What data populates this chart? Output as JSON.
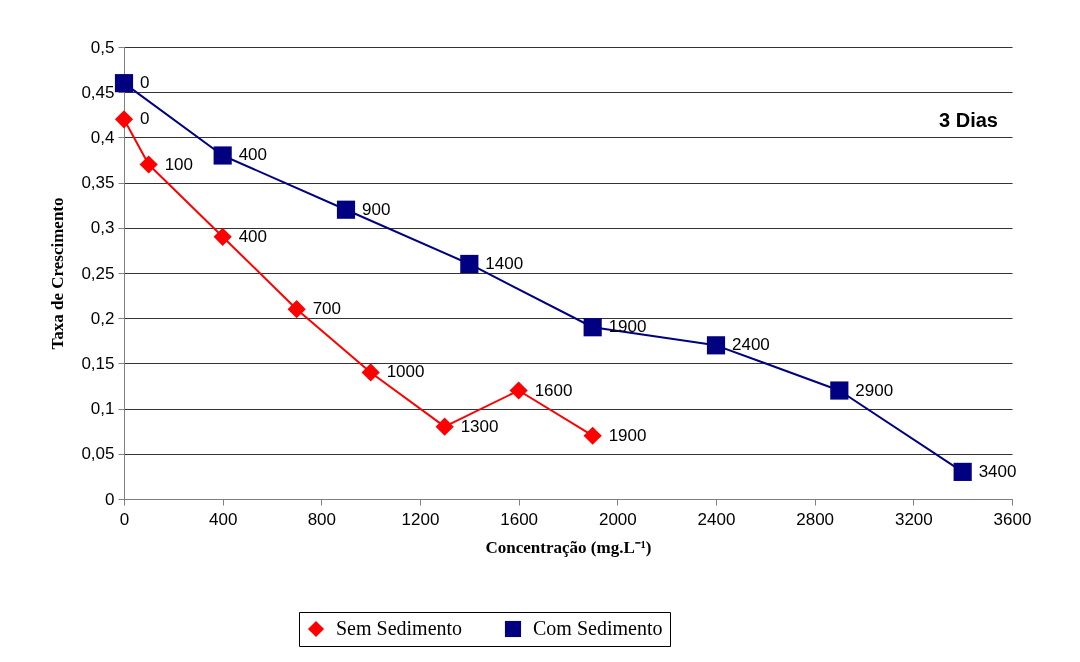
{
  "chart_data": {
    "type": "line",
    "xlabel": "Concentração (mg.L⁻¹)",
    "ylabel": "Taxa de Crescimento",
    "annotations": [
      "3 Dias",
      {
        "text": "0",
        "x": 0,
        "y": 0.42
      },
      {
        "text": "100",
        "x": 100,
        "y": 0.37
      },
      {
        "text": "400",
        "x": 400,
        "y": 0.29
      },
      {
        "text": "700",
        "x": 700,
        "y": 0.21
      },
      {
        "text": "1000",
        "x": 1000,
        "y": 0.14
      },
      {
        "text": "1300",
        "x": 1300,
        "y": 0.08
      },
      {
        "text": "1600",
        "x": 1600,
        "y": 0.12
      },
      {
        "text": "1900",
        "x": 1900,
        "y": 0.07
      },
      {
        "text": "0",
        "x": 0,
        "y": 0.46
      },
      {
        "text": "400",
        "x": 400,
        "y": 0.38
      },
      {
        "text": "900",
        "x": 900,
        "y": 0.32
      },
      {
        "text": "1400",
        "x": 1400,
        "y": 0.26
      },
      {
        "text": "1900",
        "x": 1900,
        "y": 0.19
      },
      {
        "text": "2400",
        "x": 2400,
        "y": 0.17
      },
      {
        "text": "2900",
        "x": 2900,
        "y": 0.12
      },
      {
        "text": "3400",
        "x": 3400,
        "y": 0.03
      }
    ],
    "xlim": [
      0,
      3600
    ],
    "xticks": [
      0,
      400,
      800,
      1200,
      1600,
      2000,
      2400,
      2800,
      3200,
      3600
    ],
    "ylim": [
      0,
      0.5
    ],
    "yticks": [
      0,
      {
        "value": 0.05,
        "label": "0,05"
      },
      {
        "value": 0.1,
        "label": "0,1"
      },
      {
        "value": 0.15,
        "label": "0,15"
      },
      {
        "value": 0.2,
        "label": "0,2"
      },
      {
        "value": 0.25,
        "label": "0,25"
      },
      {
        "value": 0.3,
        "label": "0,3"
      },
      {
        "value": 0.35,
        "label": "0,35"
      },
      {
        "value": 0.4,
        "label": "0,4"
      },
      {
        "value": 0.45,
        "label": "0,45"
      },
      {
        "value": 0.5,
        "label": "0,5"
      }
    ],
    "grid": "y",
    "legend": "bottom",
    "series": [
      {
        "name": "Sem Sedimento",
        "color": "#ff0000",
        "marker": "diamond",
        "x": [
          0,
          100,
          400,
          700,
          1000,
          1300,
          1600,
          1900
        ],
        "values": [
          0.42,
          0.37,
          0.29,
          0.21,
          0.14,
          0.08,
          0.12,
          0.07
        ]
      },
      {
        "name": "Com Sedimento",
        "color": "#000080",
        "marker": "square",
        "x": [
          0,
          400,
          900,
          1400,
          1900,
          2400,
          2900,
          3400
        ],
        "values": [
          0.46,
          0.38,
          0.32,
          0.26,
          0.19,
          0.17,
          0.12,
          0.03
        ]
      }
    ]
  }
}
